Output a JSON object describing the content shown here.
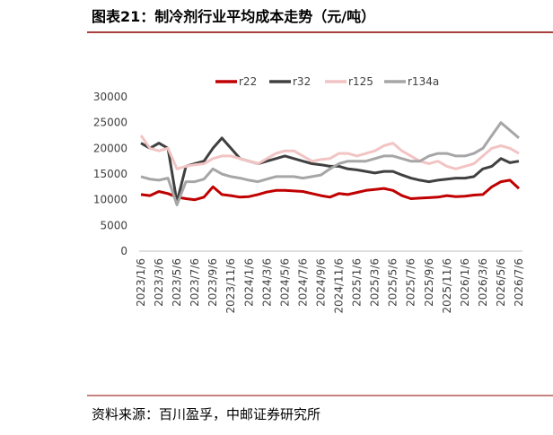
{
  "header": {
    "title": "图表21：制冷剂行业平均成本走势（元/吨）"
  },
  "chart_data": {
    "type": "line",
    "categories": [
      "2023/1/6",
      null,
      "2023/3/6",
      null,
      "2023/5/6",
      null,
      "2023/7/6",
      null,
      "2023/9/6",
      null,
      "2023/11/6",
      null,
      "2024/1/6",
      null,
      "2024/3/6",
      null,
      "2024/5/6",
      null,
      "2024/7/6",
      null,
      "2024/9/6",
      null,
      "2024/11/6",
      null,
      "2025/1/6",
      null,
      "2025/3/6",
      null,
      "2025/5/6",
      null,
      "2025/7/6",
      null,
      "2025/9/6",
      null,
      "2025/11/6",
      null,
      "2026/1/6",
      null,
      "2026/3/6",
      null,
      "2026/5/6",
      null,
      "2026/7/6"
    ],
    "series": [
      {
        "name": "r22",
        "color": "#c00000",
        "values": [
          11000,
          10800,
          11600,
          11200,
          10500,
          10200,
          10000,
          10500,
          12500,
          11000,
          10800,
          10500,
          10600,
          11000,
          11500,
          11800,
          11800,
          11700,
          11600,
          11200,
          10800,
          10500,
          11200,
          11000,
          11400,
          11800,
          12000,
          12200,
          11800,
          10800,
          10200,
          10300,
          10400,
          10500,
          10800,
          10600,
          10700,
          10900,
          11000,
          12500,
          13500,
          13800,
          12200
        ]
      },
      {
        "name": "r32",
        "color": "#404040",
        "values": [
          21000,
          20000,
          21000,
          20000,
          9500,
          16500,
          17000,
          17500,
          20000,
          22000,
          20000,
          18000,
          17500,
          17000,
          17500,
          18000,
          18500,
          18000,
          17500,
          17000,
          16800,
          16500,
          16500,
          16000,
          15800,
          15500,
          15200,
          15500,
          15500,
          14800,
          14200,
          13800,
          13500,
          13800,
          14000,
          14200,
          14200,
          14500,
          16000,
          16500,
          18000,
          17200,
          17500
        ]
      },
      {
        "name": "r125",
        "color": "#f2c4c4",
        "values": [
          22500,
          20000,
          19500,
          20000,
          16000,
          16500,
          16800,
          17000,
          18000,
          18500,
          18500,
          18000,
          17500,
          17000,
          18000,
          19000,
          19500,
          19500,
          18500,
          17500,
          17800,
          18000,
          19000,
          19000,
          18500,
          19000,
          19500,
          20500,
          21000,
          19500,
          18500,
          17500,
          17000,
          17500,
          16500,
          16000,
          16500,
          17000,
          18500,
          20000,
          20500,
          20000,
          19000
        ]
      },
      {
        "name": "r134a",
        "color": "#a6a6a6",
        "values": [
          14500,
          14000,
          13800,
          14200,
          9000,
          13500,
          13500,
          14000,
          16000,
          15000,
          14500,
          14200,
          13800,
          13500,
          14000,
          14500,
          14500,
          14500,
          14200,
          14500,
          14800,
          16000,
          17000,
          17500,
          17500,
          17500,
          18000,
          18500,
          18500,
          18000,
          17500,
          17500,
          18500,
          19000,
          19000,
          18500,
          18500,
          19000,
          20000,
          22500,
          25000,
          23500,
          22000
        ]
      }
    ],
    "ylim": [
      0,
      30000
    ],
    "yticks": [
      0,
      5000,
      10000,
      15000,
      20000,
      25000,
      30000
    ]
  },
  "footer": {
    "source": "资料来源：百川盈孚，中邮证券研究所"
  }
}
